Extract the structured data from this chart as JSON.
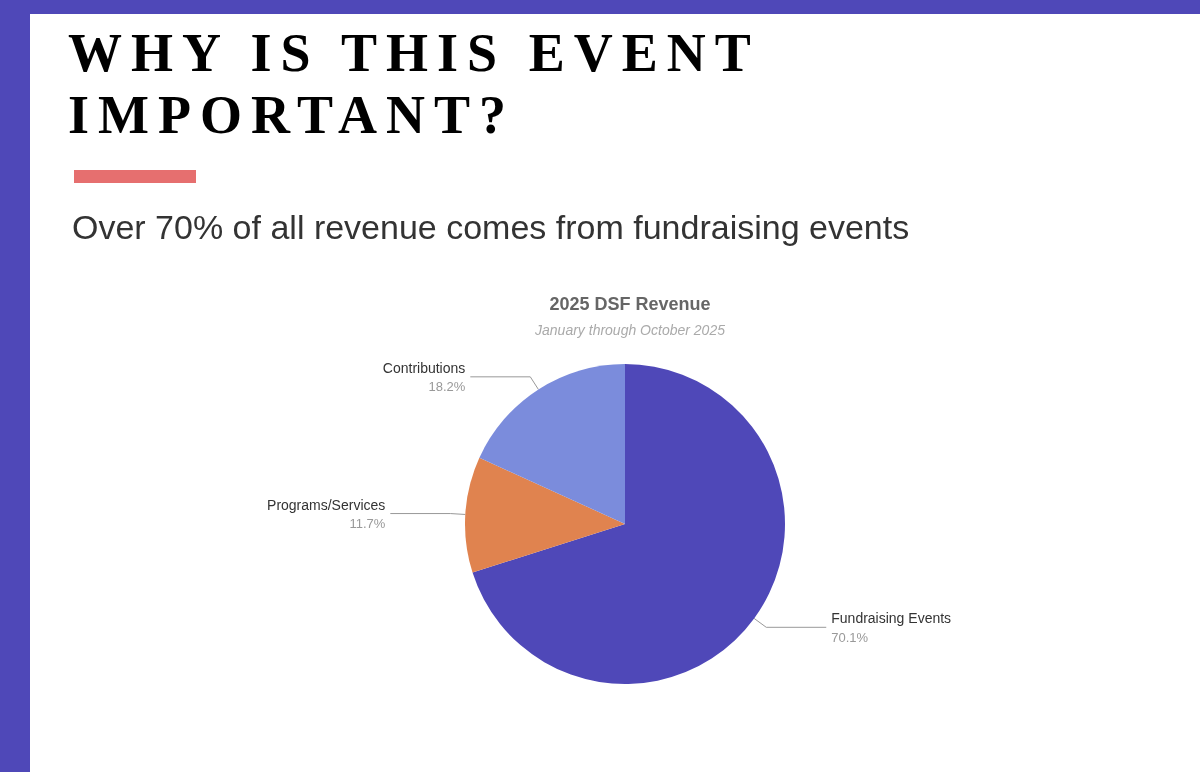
{
  "chart_data": {
    "type": "pie",
    "title": "2025 DSF Revenue",
    "subtitle": "January through October 2025",
    "annotations": [
      "WHY IS THIS EVENT IMPORTANT?",
      "Over 70% of all revenue comes from fundraising events"
    ],
    "categories": [
      "Fundraising Events",
      "Programs/Services",
      "Contributions"
    ],
    "values": [
      70.1,
      11.7,
      18.2
    ],
    "value_labels": [
      "70.1%",
      "11.7%",
      "18.2%"
    ],
    "colors": [
      "#4f48b8",
      "#e0834f",
      "#7b8cdc"
    ],
    "legend": false
  }
}
